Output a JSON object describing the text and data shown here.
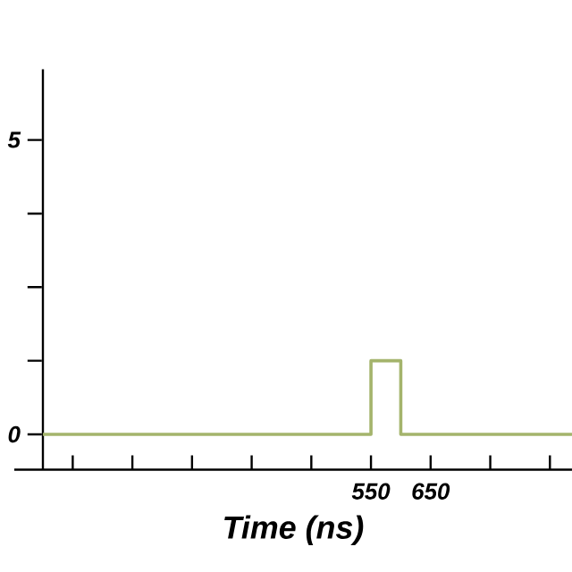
{
  "chart_data": {
    "type": "step",
    "xlabel": "Time (ns)",
    "x": [
      0,
      550,
      600,
      887
    ],
    "values": [
      0,
      1.25,
      0,
      0
    ],
    "color": "#a4b46c",
    "xlim": [
      -48,
      887
    ],
    "ylim": [
      -0.6,
      6.2
    ],
    "xticks": [
      {
        "value": 50,
        "label": null
      },
      {
        "value": 150,
        "label": null
      },
      {
        "value": 250,
        "label": null
      },
      {
        "value": 350,
        "label": null
      },
      {
        "value": 450,
        "label": null
      },
      550,
      650,
      {
        "value": 750,
        "label": null
      },
      {
        "value": 850,
        "label": null
      }
    ],
    "yticks": [
      0,
      {
        "value": 1.25,
        "label": null
      },
      {
        "value": 2.5,
        "label": null
      },
      {
        "value": 3.75,
        "label": null
      },
      5
    ],
    "grid": false,
    "marker": "none",
    "line_style": "solid"
  }
}
